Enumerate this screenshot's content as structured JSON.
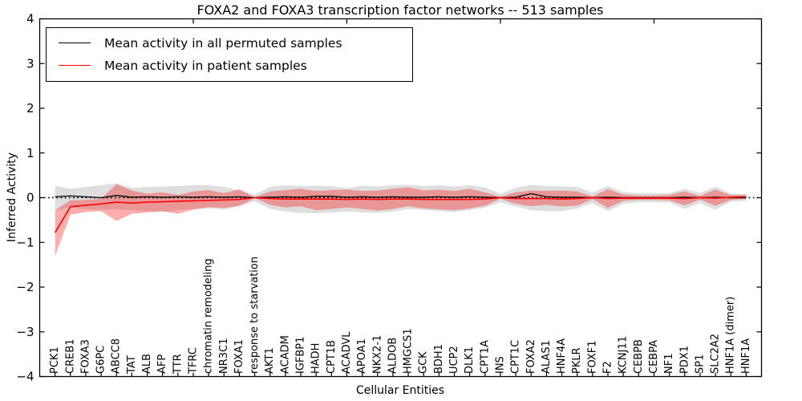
{
  "figure": {
    "title": "FOXA2 and FOXA3 transcription factor networks -- 513 samples",
    "xlabel": "Cellular Entities",
    "ylabel": "Inferred Activity",
    "legend": [
      {
        "label": "Mean activity in all permuted samples",
        "color": "#000000"
      },
      {
        "label": "Mean activity in patient samples",
        "color": "#ff0000"
      }
    ]
  },
  "chart_data": {
    "type": "line",
    "title": "FOXA2 and FOXA3 transcription factor networks -- 513 samples",
    "xlabel": "Cellular Entities",
    "ylabel": "Inferred Activity",
    "ylim": [
      -4,
      4
    ],
    "yticks": [
      -4,
      -3,
      -2,
      -1,
      0,
      1,
      2,
      3,
      4
    ],
    "top_axis_ticks_x": [
      10,
      20,
      30,
      40
    ],
    "grid": false,
    "legend_position": "upper left",
    "zero_reference_line": 0,
    "colors": {
      "permuted_line": "#000000",
      "patient_line": "#ff0000",
      "permuted_band": "#000000",
      "permuted_band_opacity": 0.13,
      "patient_band": "#ff0000",
      "patient_band_opacity": 0.32,
      "axis": "#000000"
    },
    "categories": [
      "PCK1",
      "CREB1",
      "FOXA3",
      "G6PC",
      "ABCC8",
      "TAT",
      "ALB",
      "AFP",
      "TTR",
      "TFRC",
      "chromatin remodeling",
      "NR3C1",
      "FOXA1",
      "response to starvation",
      "AKT1",
      "ACADM",
      "IGFBP1",
      "HADH",
      "CPT1B",
      "ACADVL",
      "APOA1",
      "NKX2-1",
      "ALDOB",
      "HMGCS1",
      "GCK",
      "BDH1",
      "UCP2",
      "DLK1",
      "CPT1A",
      "INS",
      "CPT1C",
      "FOXA2",
      "ALAS1",
      "HNF4A",
      "PKLR",
      "FOXF1",
      "F2",
      "KCNJ11",
      "CEBPB",
      "CEBPA",
      "NF1",
      "PDX1",
      "SP1",
      "SLC2A2",
      "HNF1A (dimer)",
      "HNF1A"
    ],
    "series": [
      {
        "name": "Permuted samples confidence band",
        "kind": "band",
        "lower": [
          -0.28,
          -0.22,
          -0.25,
          -0.27,
          -0.26,
          -0.28,
          -0.3,
          -0.32,
          -0.28,
          -0.25,
          -0.24,
          -0.26,
          -0.2,
          -0.08,
          -0.25,
          -0.31,
          -0.34,
          -0.35,
          -0.33,
          -0.31,
          -0.33,
          -0.34,
          -0.31,
          -0.25,
          -0.27,
          -0.3,
          -0.32,
          -0.28,
          -0.22,
          -0.1,
          -0.2,
          -0.28,
          -0.3,
          -0.3,
          -0.24,
          -0.12,
          -0.3,
          -0.14,
          -0.1,
          -0.1,
          -0.11,
          -0.25,
          -0.12,
          -0.27,
          -0.09,
          -0.07
        ],
        "upper": [
          0.27,
          0.2,
          0.24,
          0.28,
          0.32,
          0.22,
          0.24,
          0.25,
          0.26,
          0.28,
          0.28,
          0.24,
          0.16,
          0.07,
          0.24,
          0.28,
          0.26,
          0.27,
          0.26,
          0.21,
          0.27,
          0.25,
          0.28,
          0.29,
          0.26,
          0.28,
          0.25,
          0.28,
          0.23,
          0.09,
          0.22,
          0.29,
          0.26,
          0.25,
          0.24,
          0.11,
          0.26,
          0.13,
          0.1,
          0.1,
          0.1,
          0.2,
          0.11,
          0.25,
          0.09,
          0.08
        ]
      },
      {
        "name": "Patient samples confidence band",
        "kind": "band",
        "lower": [
          -1.3,
          -0.38,
          -0.32,
          -0.3,
          -0.52,
          -0.36,
          -0.33,
          -0.3,
          -0.36,
          -0.27,
          -0.21,
          -0.23,
          -0.18,
          -0.01,
          -0.16,
          -0.22,
          -0.19,
          -0.28,
          -0.25,
          -0.22,
          -0.25,
          -0.29,
          -0.25,
          -0.19,
          -0.24,
          -0.26,
          -0.28,
          -0.24,
          -0.18,
          -0.02,
          -0.14,
          -0.19,
          -0.16,
          -0.2,
          -0.18,
          -0.03,
          -0.23,
          -0.07,
          -0.05,
          -0.05,
          -0.06,
          -0.17,
          -0.04,
          -0.18,
          -0.05,
          -0.03
        ],
        "upper": [
          -0.28,
          -0.06,
          -0.05,
          -0.02,
          0.3,
          0.16,
          0.09,
          0.12,
          0.06,
          0.14,
          0.17,
          0.1,
          0.19,
          0.01,
          0.14,
          0.17,
          0.2,
          0.15,
          0.17,
          0.18,
          0.15,
          0.16,
          0.2,
          0.23,
          0.16,
          0.18,
          0.15,
          0.2,
          0.12,
          0.02,
          0.12,
          0.16,
          0.15,
          0.16,
          0.14,
          0.03,
          0.19,
          0.07,
          0.05,
          0.05,
          0.06,
          0.14,
          0.04,
          0.18,
          0.06,
          0.06
        ]
      },
      {
        "name": "Mean activity in all permuted samples",
        "kind": "line",
        "values": [
          0.02,
          0.04,
          0.02,
          0.0,
          0.05,
          0.01,
          0.02,
          0.01,
          0.02,
          0.01,
          0.02,
          0.01,
          0.02,
          0.0,
          0.01,
          0.02,
          0.01,
          0.03,
          0.03,
          0.01,
          0.02,
          0.01,
          0.02,
          0.01,
          0.01,
          0.02,
          0.01,
          0.02,
          0.01,
          0.0,
          0.01,
          0.09,
          0.02,
          0.01,
          0.01,
          0.0,
          0.01,
          0.0,
          0.0,
          0.0,
          0.0,
          0.01,
          0.0,
          0.01,
          0.0,
          0.0
        ]
      },
      {
        "name": "Mean activity in patient samples",
        "kind": "line",
        "values": [
          -0.78,
          -0.2,
          -0.17,
          -0.14,
          -0.1,
          -0.12,
          -0.1,
          -0.09,
          -0.08,
          -0.07,
          -0.06,
          -0.05,
          -0.04,
          0.0,
          -0.02,
          -0.03,
          -0.03,
          -0.03,
          -0.03,
          -0.04,
          -0.03,
          -0.04,
          -0.03,
          -0.03,
          -0.04,
          -0.04,
          -0.04,
          -0.04,
          -0.03,
          0.0,
          -0.02,
          -0.02,
          -0.02,
          -0.03,
          -0.02,
          0.0,
          -0.02,
          -0.01,
          -0.01,
          -0.01,
          -0.01,
          -0.02,
          0.0,
          -0.01,
          0.01,
          0.02
        ]
      }
    ]
  }
}
